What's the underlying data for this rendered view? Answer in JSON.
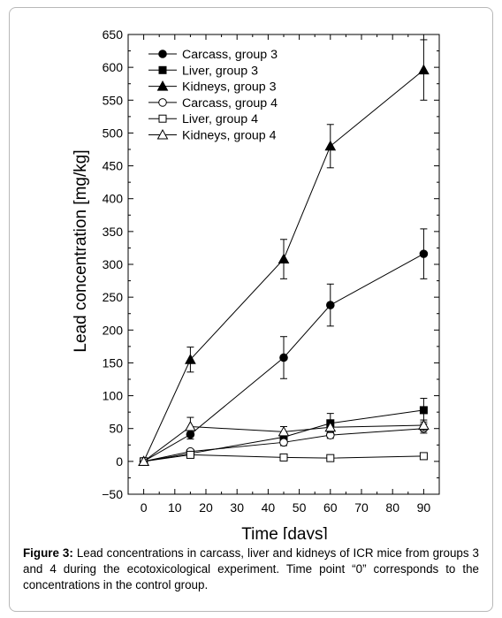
{
  "chart_data": {
    "type": "line",
    "xlabel": "Time [days]",
    "ylabel": "Lead concentration [mg/kg]",
    "xlim": [
      -5,
      95
    ],
    "ylim": [
      -50,
      650
    ],
    "x_ticks": [
      0,
      10,
      20,
      30,
      40,
      50,
      60,
      70,
      80,
      90
    ],
    "y_ticks": [
      -50,
      0,
      50,
      100,
      150,
      200,
      250,
      300,
      350,
      400,
      450,
      500,
      550,
      600,
      650
    ],
    "legend_position": "top-left",
    "grid": false,
    "series": [
      {
        "name": "Carcass, group 3",
        "marker": "circle",
        "filled": true,
        "x": [
          0,
          15,
          45,
          60,
          90
        ],
        "y": [
          0,
          41,
          158,
          238,
          316
        ],
        "err": [
          0,
          7,
          32,
          32,
          38
        ]
      },
      {
        "name": "Liver, group 3",
        "marker": "square",
        "filled": true,
        "x": [
          0,
          15,
          45,
          60,
          90
        ],
        "y": [
          0,
          12,
          37,
          58,
          78
        ],
        "err": [
          0,
          3,
          6,
          15,
          18
        ]
      },
      {
        "name": "Kidneys, group 3",
        "marker": "triangle",
        "filled": true,
        "x": [
          0,
          15,
          45,
          60,
          90
        ],
        "y": [
          0,
          155,
          308,
          480,
          596
        ],
        "err": [
          0,
          19,
          30,
          33,
          46
        ]
      },
      {
        "name": "Carcass, group 4",
        "marker": "circle",
        "filled": false,
        "x": [
          0,
          15,
          45,
          60,
          90
        ],
        "y": [
          0,
          15,
          29,
          40,
          50
        ],
        "err": [
          0,
          3,
          5,
          5,
          7
        ]
      },
      {
        "name": "Liver, group 4",
        "marker": "square",
        "filled": false,
        "x": [
          0,
          15,
          45,
          60,
          90
        ],
        "y": [
          0,
          10,
          6,
          5,
          8
        ],
        "err": [
          0,
          2,
          2,
          2,
          2
        ]
      },
      {
        "name": "Kidneys, group 4",
        "marker": "triangle",
        "filled": false,
        "x": [
          0,
          15,
          45,
          60,
          90
        ],
        "y": [
          0,
          53,
          45,
          52,
          55
        ],
        "err": [
          0,
          14,
          8,
          8,
          8
        ]
      }
    ]
  },
  "caption": {
    "label": "Figure 3:",
    "text": " Lead concentrations in carcass, liver and kidneys of ICR mice from groups 3 and 4 during the ecotoxicological experiment. Time point “0” corresponds to the concentrations in the control group."
  }
}
